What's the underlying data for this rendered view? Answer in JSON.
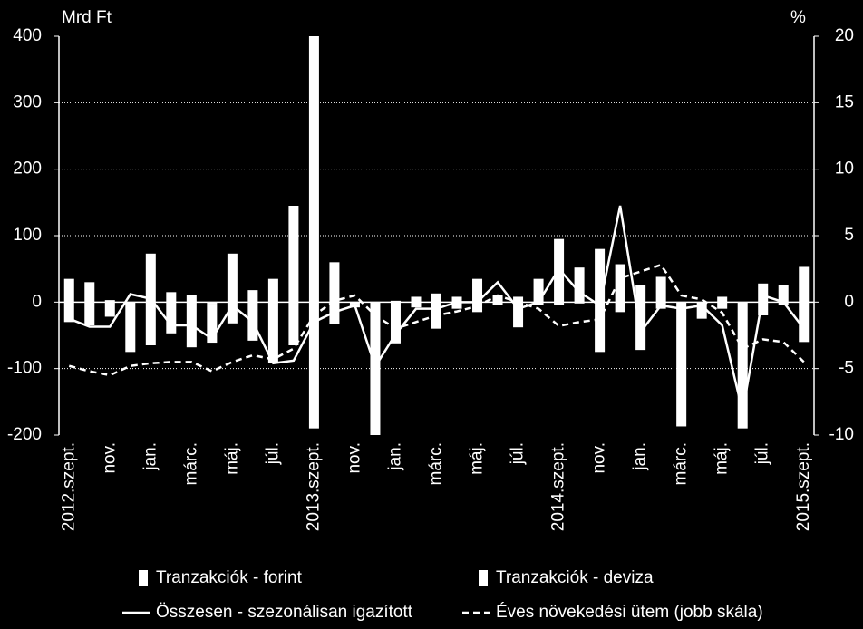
{
  "chart_data": {
    "type": "bar-line",
    "y_label": "Mrd Ft",
    "y2_label": "%",
    "categories": [
      "2012.szept.",
      null,
      "nov.",
      null,
      "jan.",
      null,
      "márc.",
      null,
      "máj.",
      null,
      "júl.",
      null,
      "2013.szept.",
      null,
      "nov.",
      null,
      "jan.",
      null,
      "márc.",
      null,
      "máj.",
      null,
      "júl.",
      null,
      "2014.szept.",
      null,
      "nov.",
      null,
      "jan.",
      null,
      "márc.",
      null,
      "máj.",
      null,
      "júl.",
      null,
      "2015.szept."
    ],
    "ylim": [
      -200,
      400
    ],
    "yticks": [
      -200,
      -100,
      0,
      100,
      200,
      300,
      400
    ],
    "y2lim": [
      -10,
      20
    ],
    "y2ticks": [
      -10,
      -5,
      0,
      5,
      10,
      15,
      20
    ],
    "grid": true,
    "series": [
      {
        "name": "Tranzakciók - forint",
        "kind": "bar",
        "color": "#ffffff",
        "values": [
          35,
          30,
          3,
          -5,
          73,
          15,
          10,
          -3,
          73,
          18,
          35,
          145,
          400,
          60,
          -3,
          -20,
          2,
          8,
          13,
          8,
          35,
          10,
          8,
          35,
          95,
          52,
          80,
          57,
          25,
          38,
          -5,
          -5,
          8,
          -5,
          28,
          25,
          53
        ]
      },
      {
        "name": "Tranzakciók - deviza",
        "kind": "bar",
        "color": "#ffffff",
        "values": [
          -30,
          -35,
          -22,
          -70,
          -65,
          -47,
          -68,
          -58,
          -32,
          -58,
          -92,
          -65,
          -190,
          -33,
          -5,
          -180,
          -62,
          -8,
          -40,
          -10,
          -15,
          -5,
          -38,
          -5,
          -5,
          -2,
          -75,
          -15,
          -72,
          -10,
          -182,
          -20,
          -10,
          -185,
          -20,
          -5,
          -60
        ]
      },
      {
        "name": "Összesen - szezonálisan igazított",
        "kind": "line",
        "dash": false,
        "color": "#ffffff",
        "values": [
          -25,
          -37,
          -37,
          12,
          5,
          -35,
          -35,
          -55,
          -5,
          -30,
          -92,
          -88,
          -30,
          -15,
          -5,
          -97,
          -48,
          -10,
          -10,
          0,
          0,
          30,
          -10,
          0,
          50,
          15,
          -5,
          145,
          -45,
          -5,
          -10,
          -5,
          -35,
          -165,
          10,
          0,
          -40
        ]
      },
      {
        "name": "Éves növekedési ütem (jobb skála)",
        "kind": "line",
        "dash": true,
        "axis": "y2",
        "color": "#ffffff",
        "values": [
          -4.8,
          -5.2,
          -5.5,
          -4.8,
          -4.6,
          -4.5,
          -4.5,
          -5.2,
          -4.5,
          -4.0,
          -4.3,
          -3.5,
          -1.0,
          0.1,
          0.5,
          -1.0,
          -2.0,
          -1.5,
          -1.0,
          -0.7,
          -0.3,
          0.5,
          0,
          -0.5,
          -1.8,
          -1.5,
          -1.3,
          1.8,
          2.3,
          2.8,
          0.5,
          0.2,
          -0.8,
          -3.5,
          -2.8,
          -3.0,
          -4.5
        ]
      }
    ]
  }
}
